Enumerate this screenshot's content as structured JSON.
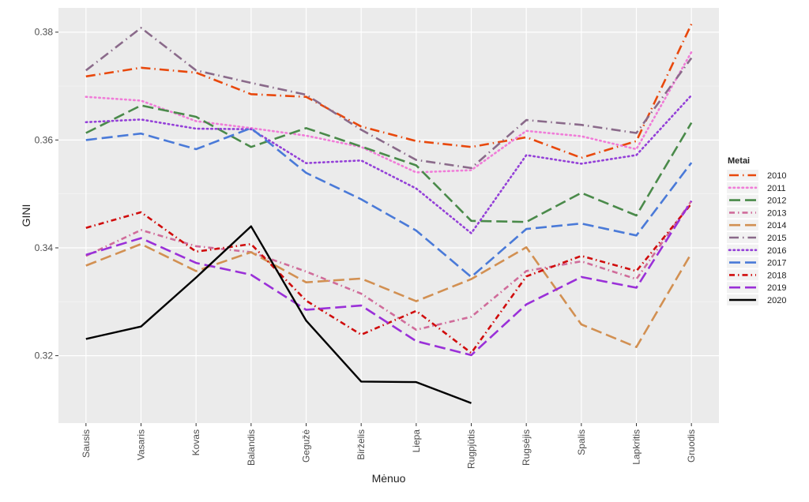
{
  "chart_data": {
    "type": "line",
    "xlabel": "Mėnuo",
    "ylabel": "GINI",
    "ylim": [
      0.3075,
      0.3845
    ],
    "yticks": [
      0.32,
      0.34,
      0.36,
      0.38
    ],
    "grid": true,
    "legend_title": "Metai",
    "legend_position": "right",
    "categories": [
      "Sausis",
      "Vasaris",
      "Kovas",
      "Balandis",
      "Gegužė",
      "Birželis",
      "Liepa",
      "Rugpjūtis",
      "Rugsėjis",
      "Spalis",
      "Lapkritis",
      "Gruodis"
    ],
    "series": [
      {
        "name": "2010",
        "color": "#E8480C",
        "dash": "longdashdot",
        "values": [
          0.3718,
          0.3734,
          0.3725,
          0.3685,
          0.368,
          0.3625,
          0.3598,
          0.3587,
          0.3605,
          0.3567,
          0.3598,
          0.3815
        ]
      },
      {
        "name": "2011",
        "color": "#F07CD8",
        "dash": "dotted",
        "values": [
          0.368,
          0.3673,
          0.3635,
          0.3622,
          0.3608,
          0.3587,
          0.354,
          0.3544,
          0.3617,
          0.3607,
          0.3583,
          0.3763
        ]
      },
      {
        "name": "2012",
        "color": "#4A8A4A",
        "dash": "longdash",
        "values": [
          0.3613,
          0.3664,
          0.3643,
          0.3587,
          0.3622,
          0.3588,
          0.3553,
          0.345,
          0.3448,
          0.3502,
          0.346,
          0.3632
        ]
      },
      {
        "name": "2013",
        "color": "#D06C9A",
        "dash": "dashdot",
        "values": [
          0.3385,
          0.3433,
          0.3403,
          0.3392,
          0.3356,
          0.3315,
          0.3248,
          0.3272,
          0.3357,
          0.3375,
          0.3342,
          0.3487
        ]
      },
      {
        "name": "2014",
        "color": "#D29052",
        "dash": "longdash",
        "values": [
          0.3367,
          0.3407,
          0.3357,
          0.3392,
          0.3336,
          0.3343,
          0.3301,
          0.3342,
          0.3401,
          0.3258,
          0.3216,
          0.339
        ]
      },
      {
        "name": "2015",
        "color": "#8A6A8A",
        "dash": "longdashdot",
        "values": [
          0.3729,
          0.3808,
          0.3729,
          0.3706,
          0.3684,
          0.3619,
          0.3563,
          0.3548,
          0.3637,
          0.3628,
          0.3613,
          0.3752
        ]
      },
      {
        "name": "2016",
        "color": "#9440D8",
        "dash": "dotted",
        "values": [
          0.3633,
          0.3638,
          0.3621,
          0.362,
          0.3557,
          0.3562,
          0.351,
          0.3427,
          0.3572,
          0.3556,
          0.3572,
          0.3683
        ]
      },
      {
        "name": "2017",
        "color": "#4A7AD8",
        "dash": "longdash",
        "values": [
          0.36,
          0.3612,
          0.3583,
          0.3622,
          0.3539,
          0.349,
          0.3432,
          0.3346,
          0.3435,
          0.3445,
          0.3423,
          0.3558
        ]
      },
      {
        "name": "2018",
        "color": "#D00C0C",
        "dash": "dashdot",
        "values": [
          0.3437,
          0.3466,
          0.3393,
          0.3407,
          0.3302,
          0.3239,
          0.3283,
          0.3205,
          0.3347,
          0.3385,
          0.3357,
          0.3482
        ]
      },
      {
        "name": "2019",
        "color": "#9A30D8",
        "dash": "longdash",
        "values": [
          0.3387,
          0.3418,
          0.3372,
          0.335,
          0.3285,
          0.3293,
          0.3227,
          0.3201,
          0.3295,
          0.3346,
          0.3326,
          0.3487
        ]
      },
      {
        "name": "2020",
        "color": "#000000",
        "dash": "solid",
        "values": [
          0.3231,
          0.3254,
          0.3345,
          0.344,
          0.3265,
          0.3152,
          0.3151,
          0.3112,
          null,
          null,
          null,
          null
        ]
      }
    ]
  }
}
